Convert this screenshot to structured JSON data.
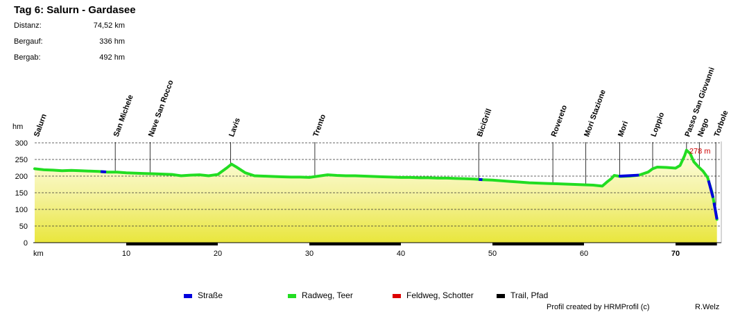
{
  "title": "Tag 6:  Salurn - Gardasee",
  "stats": [
    {
      "label": "Distanz:",
      "value": "74,52 km"
    },
    {
      "label": "Bergauf:",
      "value": "336 hm"
    },
    {
      "label": "Bergab:",
      "value": "492 hm"
    }
  ],
  "chart_data": {
    "type": "area",
    "xlabel": "km",
    "ylabel": "hm",
    "xlim": [
      0,
      75
    ],
    "ylim": [
      0,
      300
    ],
    "yticks": [
      0,
      50,
      100,
      150,
      200,
      250,
      300
    ],
    "xticks": [
      10,
      20,
      30,
      40,
      50,
      60,
      70
    ],
    "xtick_first_label": "km",
    "grid": "horizontal dashed",
    "fill": "yellow gradient",
    "max_label": "278 m",
    "max_point": {
      "x": 71.2,
      "y": 278
    },
    "profile": [
      [
        0,
        222
      ],
      [
        1,
        219
      ],
      [
        2,
        218
      ],
      [
        3,
        216
      ],
      [
        4,
        217
      ],
      [
        5,
        216
      ],
      [
        6,
        215
      ],
      [
        7,
        214
      ],
      [
        8,
        212
      ],
      [
        9,
        212
      ],
      [
        10,
        210
      ],
      [
        11,
        209
      ],
      [
        12,
        208
      ],
      [
        13,
        207
      ],
      [
        14,
        206
      ],
      [
        15,
        205
      ],
      [
        16,
        201
      ],
      [
        17,
        203
      ],
      [
        18,
        204
      ],
      [
        19,
        201
      ],
      [
        20,
        205
      ],
      [
        21,
        225
      ],
      [
        21.5,
        236
      ],
      [
        22,
        228
      ],
      [
        23,
        210
      ],
      [
        24,
        201
      ],
      [
        25,
        200
      ],
      [
        26,
        199
      ],
      [
        27,
        198
      ],
      [
        28,
        197
      ],
      [
        29,
        197
      ],
      [
        30,
        196
      ],
      [
        31,
        200
      ],
      [
        32,
        204
      ],
      [
        33,
        202
      ],
      [
        34,
        201
      ],
      [
        35,
        201
      ],
      [
        36,
        200
      ],
      [
        37,
        199
      ],
      [
        38,
        198
      ],
      [
        39,
        197
      ],
      [
        40,
        196
      ],
      [
        41,
        196
      ],
      [
        42,
        195
      ],
      [
        43,
        195
      ],
      [
        44,
        194
      ],
      [
        45,
        194
      ],
      [
        46,
        193
      ],
      [
        47,
        192
      ],
      [
        48,
        191
      ],
      [
        49,
        189
      ],
      [
        50,
        188
      ],
      [
        51,
        186
      ],
      [
        52,
        184
      ],
      [
        53,
        182
      ],
      [
        54,
        180
      ],
      [
        55,
        179
      ],
      [
        56,
        178
      ],
      [
        57,
        177
      ],
      [
        58,
        176
      ],
      [
        59,
        175
      ],
      [
        60,
        174
      ],
      [
        61,
        173
      ],
      [
        62,
        170
      ],
      [
        62.5,
        182
      ],
      [
        63,
        193
      ],
      [
        63.3,
        202
      ],
      [
        64,
        199
      ],
      [
        65,
        200
      ],
      [
        66,
        203
      ],
      [
        67,
        212
      ],
      [
        67.5,
        222
      ],
      [
        68,
        227
      ],
      [
        69,
        226
      ],
      [
        70,
        224
      ],
      [
        70.5,
        232
      ],
      [
        71,
        262
      ],
      [
        71.2,
        278
      ],
      [
        71.6,
        268
      ],
      [
        72,
        243
      ],
      [
        72.5,
        228
      ],
      [
        73,
        215
      ],
      [
        73.5,
        196
      ],
      [
        74,
        150
      ],
      [
        74.5,
        75
      ],
      [
        74.52,
        70
      ]
    ],
    "surface_segments": [
      {
        "from": 7.2,
        "to": 7.8,
        "type": "Straße"
      },
      {
        "from": 48.5,
        "to": 48.9,
        "type": "Straße"
      },
      {
        "from": 63.8,
        "to": 66.0,
        "type": "Straße"
      },
      {
        "from": 73.6,
        "to": 74.1,
        "type": "Straße"
      },
      {
        "from": 74.2,
        "to": 74.52,
        "type": "Straße"
      }
    ],
    "trail_segments": [
      [
        10,
        20
      ],
      [
        30,
        40
      ],
      [
        50,
        60
      ],
      [
        70,
        74.52
      ]
    ],
    "waypoints": [
      {
        "name": "Salurn",
        "km": 0.1
      },
      {
        "name": "San Michele",
        "km": 8.8
      },
      {
        "name": "Nave San Rocco",
        "km": 12.6
      },
      {
        "name": "Lavis",
        "km": 21.4
      },
      {
        "name": "Trento",
        "km": 30.6
      },
      {
        "name": "BiciGrill",
        "km": 48.5
      },
      {
        "name": "Rovereto",
        "km": 56.6
      },
      {
        "name": "Mori Stazione",
        "km": 60.2
      },
      {
        "name": "Mori",
        "km": 63.9
      },
      {
        "name": "Loppio",
        "km": 67.5
      },
      {
        "name": "Passo San Giovanni",
        "km": 71.2
      },
      {
        "name": "Nego",
        "km": 72.6
      },
      {
        "name": "Torbole",
        "km": 74.4
      }
    ],
    "colors": {
      "strasse": "#0000dd",
      "radweg": "#22dd22",
      "feldweg": "#dd0000",
      "trail": "#000000",
      "max_label": "#cc0000"
    }
  },
  "legend": [
    {
      "label": "Straße",
      "color": "#0000dd"
    },
    {
      "label": "Radweg, Teer",
      "color": "#22dd22"
    },
    {
      "label": "Feldweg, Schotter",
      "color": "#dd0000"
    },
    {
      "label": "Trail, Pfad",
      "color": "#000000"
    }
  ],
  "credits": {
    "profile": "Profil created by HRMProfil (c)",
    "author": "R.Welz"
  }
}
